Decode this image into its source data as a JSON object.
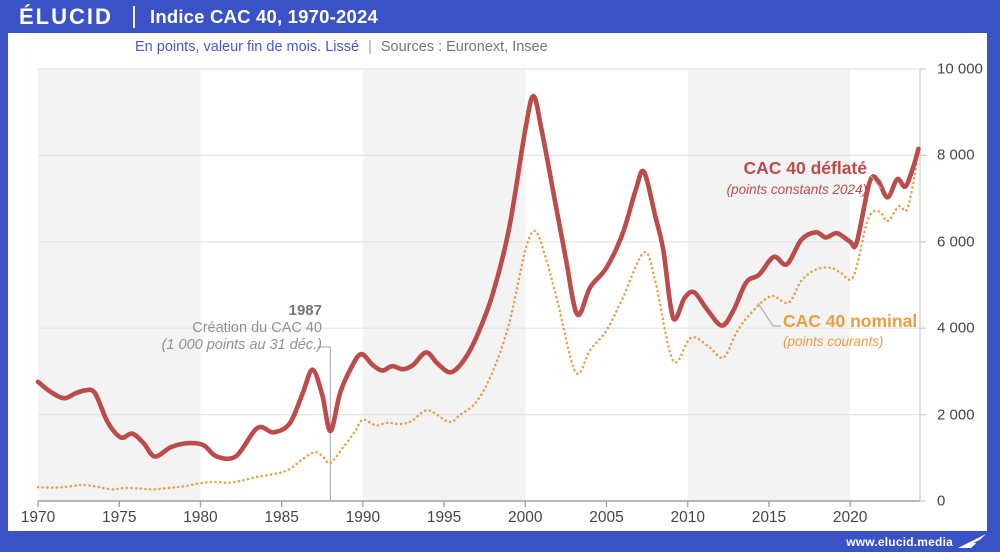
{
  "frame": {
    "brand": "ÉLUCID",
    "title": "Indice CAC 40, 1970-2024",
    "footer_url": "www.elucid.media",
    "accent_blue": "#3B51C6"
  },
  "subtitle": {
    "text": "En points, valeur fin de mois. Lissé",
    "separator": "|",
    "sources": "Sources : Euronext, Insee"
  },
  "chart_data": {
    "type": "line",
    "title": "Indice CAC 40, 1970-2024",
    "unit": "points",
    "x_axis": {
      "min": 1970,
      "max": 2024.3,
      "tick_labels": [
        "1970",
        "1975",
        "1980",
        "1985",
        "1990",
        "1995",
        "2000",
        "2005",
        "2010",
        "2015",
        "2020"
      ],
      "tick_values": [
        1970,
        1975,
        1980,
        1985,
        1990,
        1995,
        2000,
        2005,
        2010,
        2015,
        2020
      ]
    },
    "y_axis": {
      "min": 0,
      "max": 10000,
      "ticks": [
        {
          "value": 0,
          "label": "0"
        },
        {
          "value": 2000,
          "label": "2 000"
        },
        {
          "value": 4000,
          "label": "4 000"
        },
        {
          "value": 6000,
          "label": "6 000"
        },
        {
          "value": 8000,
          "label": "8 000"
        },
        {
          "value": 10000,
          "label": "10 000"
        }
      ]
    },
    "decade_bands": [
      [
        1970,
        1980
      ],
      [
        1990,
        2000
      ],
      [
        2010,
        2020
      ]
    ],
    "band_color": "#F3F3F4",
    "grid_color": "#E4E4E4",
    "series": [
      {
        "name": "CAC 40 déflaté",
        "sub": "(points constants 2024)",
        "color": "#BC4B4B",
        "style": "solid",
        "points": [
          [
            1970.0,
            2760
          ],
          [
            1970.8,
            2520
          ],
          [
            1971.6,
            2380
          ],
          [
            1972.3,
            2490
          ],
          [
            1972.9,
            2560
          ],
          [
            1973.5,
            2500
          ],
          [
            1974.3,
            1820
          ],
          [
            1975.1,
            1470
          ],
          [
            1975.8,
            1560
          ],
          [
            1976.5,
            1340
          ],
          [
            1977.2,
            1030
          ],
          [
            1978.2,
            1250
          ],
          [
            1979.3,
            1340
          ],
          [
            1980.2,
            1290
          ],
          [
            1981.0,
            1030
          ],
          [
            1982.2,
            1040
          ],
          [
            1983.5,
            1690
          ],
          [
            1984.5,
            1590
          ],
          [
            1985.5,
            1800
          ],
          [
            1986.3,
            2500
          ],
          [
            1986.9,
            3040
          ],
          [
            1987.5,
            2450
          ],
          [
            1988.0,
            1620
          ],
          [
            1988.6,
            2500
          ],
          [
            1989.3,
            3100
          ],
          [
            1989.9,
            3400
          ],
          [
            1990.6,
            3150
          ],
          [
            1991.2,
            3020
          ],
          [
            1991.8,
            3120
          ],
          [
            1992.5,
            3050
          ],
          [
            1993.1,
            3150
          ],
          [
            1993.9,
            3440
          ],
          [
            1994.6,
            3180
          ],
          [
            1995.4,
            2980
          ],
          [
            1996.2,
            3250
          ],
          [
            1997.0,
            3800
          ],
          [
            1998.0,
            4800
          ],
          [
            1999.0,
            6300
          ],
          [
            2000.0,
            8600
          ],
          [
            2000.5,
            9370
          ],
          [
            2001.0,
            8600
          ],
          [
            2001.8,
            7000
          ],
          [
            2002.5,
            5600
          ],
          [
            2003.2,
            4320
          ],
          [
            2004.0,
            4950
          ],
          [
            2005.0,
            5400
          ],
          [
            2006.0,
            6200
          ],
          [
            2006.8,
            7200
          ],
          [
            2007.3,
            7620
          ],
          [
            2008.0,
            6600
          ],
          [
            2008.5,
            5800
          ],
          [
            2009.1,
            4240
          ],
          [
            2009.8,
            4700
          ],
          [
            2010.4,
            4830
          ],
          [
            2011.2,
            4430
          ],
          [
            2012.1,
            4060
          ],
          [
            2012.8,
            4400
          ],
          [
            2013.6,
            5060
          ],
          [
            2014.4,
            5240
          ],
          [
            2015.3,
            5650
          ],
          [
            2016.1,
            5480
          ],
          [
            2017.0,
            6050
          ],
          [
            2017.9,
            6220
          ],
          [
            2018.5,
            6100
          ],
          [
            2019.2,
            6200
          ],
          [
            2020.0,
            6000
          ],
          [
            2020.4,
            5980
          ],
          [
            2021.2,
            7380
          ],
          [
            2021.7,
            7420
          ],
          [
            2022.3,
            7030
          ],
          [
            2022.9,
            7450
          ],
          [
            2023.4,
            7280
          ],
          [
            2023.9,
            7750
          ],
          [
            2024.2,
            8150
          ]
        ]
      },
      {
        "name": "CAC 40 nominal",
        "sub": "(points courants)",
        "color": "#EC9C41",
        "style": "dotted",
        "points": [
          [
            1970.0,
            320
          ],
          [
            1971.0,
            310
          ],
          [
            1972.0,
            340
          ],
          [
            1972.7,
            370
          ],
          [
            1973.5,
            340
          ],
          [
            1974.5,
            270
          ],
          [
            1975.3,
            300
          ],
          [
            1976.2,
            290
          ],
          [
            1977.0,
            270
          ],
          [
            1978.0,
            300
          ],
          [
            1979.0,
            340
          ],
          [
            1980.1,
            420
          ],
          [
            1981.0,
            440
          ],
          [
            1981.7,
            420
          ],
          [
            1982.5,
            470
          ],
          [
            1983.5,
            560
          ],
          [
            1984.5,
            620
          ],
          [
            1985.4,
            720
          ],
          [
            1986.4,
            1000
          ],
          [
            1987.1,
            1130
          ],
          [
            1987.6,
            1000
          ],
          [
            1988.0,
            880
          ],
          [
            1988.8,
            1250
          ],
          [
            1989.5,
            1600
          ],
          [
            1990.0,
            1880
          ],
          [
            1990.8,
            1750
          ],
          [
            1991.5,
            1810
          ],
          [
            1992.3,
            1780
          ],
          [
            1993.0,
            1850
          ],
          [
            1994.0,
            2100
          ],
          [
            1995.3,
            1830
          ],
          [
            1996.0,
            2000
          ],
          [
            1997.0,
            2300
          ],
          [
            1998.0,
            3000
          ],
          [
            1999.0,
            4100
          ],
          [
            2000.0,
            5800
          ],
          [
            2000.6,
            6250
          ],
          [
            2001.2,
            5700
          ],
          [
            2002.0,
            4600
          ],
          [
            2003.1,
            2980
          ],
          [
            2004.0,
            3500
          ],
          [
            2005.0,
            3950
          ],
          [
            2006.0,
            4700
          ],
          [
            2007.3,
            5750
          ],
          [
            2008.0,
            5100
          ],
          [
            2009.1,
            3250
          ],
          [
            2010.2,
            3780
          ],
          [
            2011.3,
            3570
          ],
          [
            2012.2,
            3320
          ],
          [
            2013.0,
            3900
          ],
          [
            2013.8,
            4310
          ],
          [
            2015.1,
            4740
          ],
          [
            2016.2,
            4590
          ],
          [
            2017.0,
            5100
          ],
          [
            2017.9,
            5360
          ],
          [
            2018.8,
            5400
          ],
          [
            2019.4,
            5290
          ],
          [
            2020.2,
            5200
          ],
          [
            2021.1,
            6520
          ],
          [
            2021.8,
            6700
          ],
          [
            2022.3,
            6480
          ],
          [
            2023.0,
            6820
          ],
          [
            2023.5,
            6750
          ],
          [
            2024.0,
            7600
          ],
          [
            2024.2,
            8200
          ]
        ]
      }
    ],
    "annotation": {
      "year_label": "1987",
      "line1": "Création du CAC 40",
      "line2": "(1 000 points au 31 déc.)",
      "marker_year": 1988
    }
  }
}
